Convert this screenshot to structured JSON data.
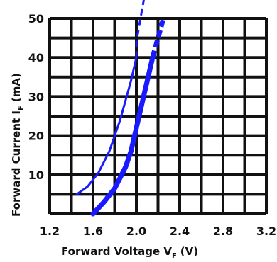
{
  "chart_data": {
    "type": "line",
    "xlabel": "Forward Voltage V",
    "xlabel_subscript": "F",
    "xlabel_unit": "(V)",
    "ylabel": "Forward Current I",
    "ylabel_subscript": "F",
    "ylabel_unit": "(mA)",
    "xlim": [
      1.2,
      3.2
    ],
    "ylim": [
      0,
      50
    ],
    "x_ticks": [
      "1.2",
      "1.6",
      "2.0",
      "2.4",
      "2.8",
      "3.2"
    ],
    "y_ticks": [
      "10",
      "20",
      "30",
      "40",
      "50"
    ],
    "grid": true,
    "series": [
      {
        "line_style": "thin",
        "color": "#1a1aff",
        "points": [
          [
            1.45,
            5
          ],
          [
            1.55,
            7
          ],
          [
            1.65,
            10.5
          ],
          [
            1.75,
            16
          ],
          [
            1.85,
            24
          ],
          [
            1.95,
            34
          ],
          [
            2.0,
            40
          ]
        ],
        "dashed_extension": [
          [
            2.0,
            40
          ],
          [
            2.0,
            44
          ],
          [
            2.07,
            55
          ]
        ]
      },
      {
        "line_style": "thick",
        "color": "#1a1aff",
        "points": [
          [
            1.6,
            0
          ],
          [
            1.7,
            3
          ],
          [
            1.8,
            6.5
          ],
          [
            1.9,
            12
          ],
          [
            1.95,
            16
          ],
          [
            2.0,
            22
          ],
          [
            2.05,
            28
          ],
          [
            2.1,
            34
          ],
          [
            2.15,
            40
          ]
        ],
        "dashed_extension": [
          [
            2.15,
            40
          ],
          [
            2.25,
            50
          ]
        ]
      }
    ]
  }
}
